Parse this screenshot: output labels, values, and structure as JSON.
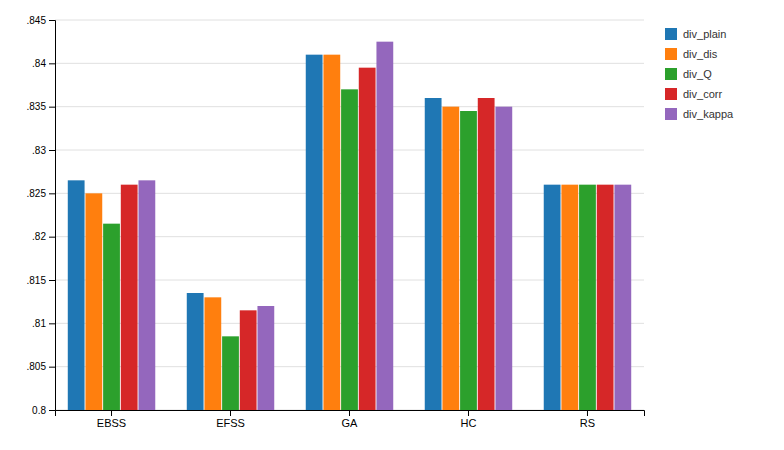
{
  "chart_data": {
    "type": "bar",
    "categories": [
      "EBSS",
      "EFSS",
      "GA",
      "HC",
      "RS"
    ],
    "series": [
      {
        "name": "div_plain",
        "values": [
          0.8265,
          0.8135,
          0.841,
          0.836,
          0.826
        ]
      },
      {
        "name": "div_dis",
        "values": [
          0.825,
          0.813,
          0.841,
          0.835,
          0.826
        ]
      },
      {
        "name": "div_Q",
        "values": [
          0.8215,
          0.8085,
          0.837,
          0.8345,
          0.826
        ]
      },
      {
        "name": "div_corr",
        "values": [
          0.826,
          0.8115,
          0.8395,
          0.836,
          0.826
        ]
      },
      {
        "name": "div_kappa",
        "values": [
          0.8265,
          0.812,
          0.8425,
          0.835,
          0.826
        ]
      }
    ],
    "ylim": [
      0.8,
      0.845
    ],
    "yticks": [
      0.8,
      {
        "value": 0.805,
        "label": ".805"
      },
      {
        "value": 0.81,
        "label": ".81"
      },
      {
        "value": 0.815,
        "label": ".815"
      },
      {
        "value": 0.82,
        "label": ".82"
      },
      {
        "value": 0.825,
        "label": ".825"
      },
      {
        "value": 0.83,
        "label": ".83"
      },
      {
        "value": 0.835,
        "label": ".835"
      },
      {
        "value": 0.84,
        "label": ".84"
      },
      {
        "value": 0.845,
        "label": ".845"
      }
    ],
    "grid": true,
    "legend": "upper right"
  }
}
